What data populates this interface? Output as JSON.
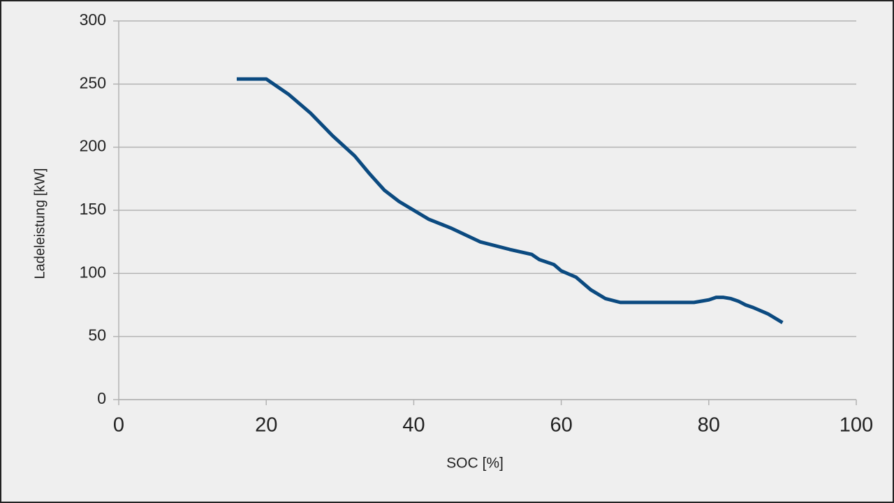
{
  "chart_data": {
    "type": "line",
    "x_label": "SOC [%]",
    "y_label": "Ladeleistung [kW]",
    "x": [
      16,
      20,
      23,
      26,
      29,
      32,
      34,
      36,
      38,
      40,
      42,
      45,
      49,
      53,
      56,
      57,
      59,
      60,
      62,
      64,
      66,
      68,
      70,
      75,
      78,
      80,
      81,
      82,
      83,
      84,
      85,
      86,
      88,
      90
    ],
    "series": [
      {
        "name": "Ladeleistung",
        "color": "#0b4a80",
        "values": [
          254,
          254,
          242,
          227,
          209,
          193,
          179,
          166,
          157,
          150,
          143,
          136,
          125,
          119,
          115,
          111,
          107,
          102,
          97,
          87,
          80,
          77,
          77,
          77,
          77,
          79,
          81,
          81,
          80,
          78,
          75,
          73,
          68,
          61
        ]
      }
    ],
    "xlim": [
      0,
      100
    ],
    "xticks": [
      0,
      20,
      40,
      60,
      80,
      100
    ],
    "ylim": [
      0,
      300
    ],
    "yticks": [
      0,
      50,
      100,
      150,
      200,
      250,
      300
    ],
    "grid": true
  }
}
